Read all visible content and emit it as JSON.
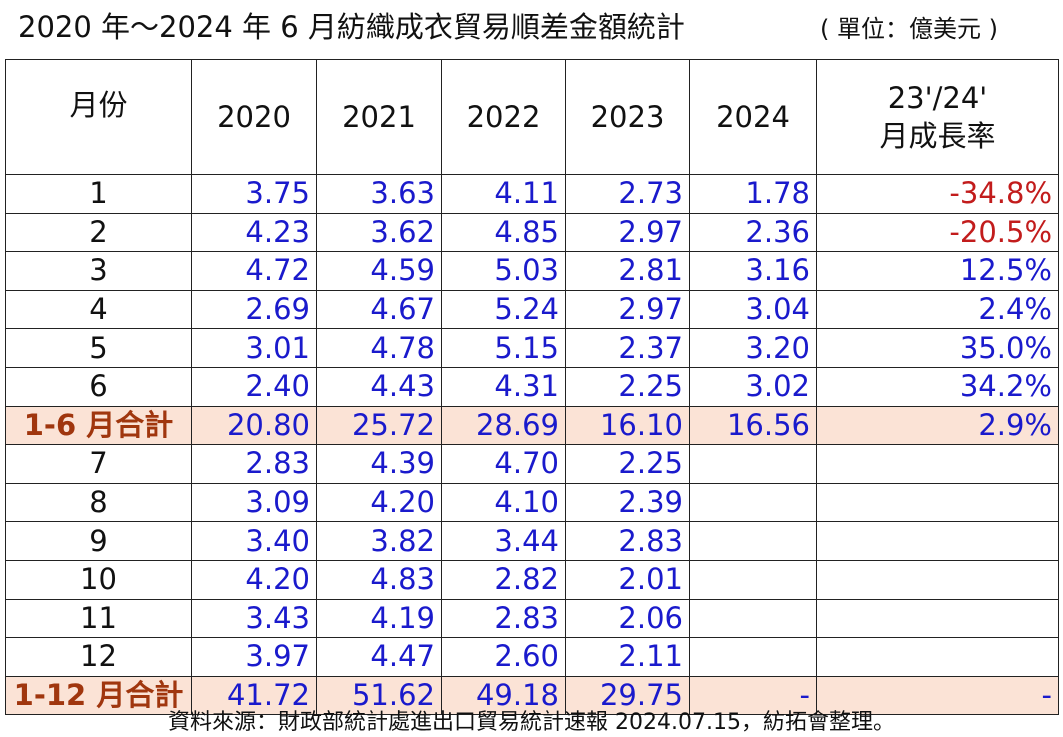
{
  "title": "2020 年～2024 年 6 月紡織成衣貿易順差金額統計",
  "unit": "( 單位：億美元 )",
  "headers": {
    "month": "月份",
    "y2020": "2020",
    "y2021": "2021",
    "y2022": "2022",
    "y2023": "2023",
    "y2024": "2024",
    "growth_line1": "23'/24'",
    "growth_line2": "月成長率"
  },
  "rows": [
    {
      "month": "1",
      "y2020": "3.75",
      "y2021": "3.63",
      "y2022": "4.11",
      "y2023": "2.73",
      "y2024": "1.78",
      "growth": "-34.8%"
    },
    {
      "month": "2",
      "y2020": "4.23",
      "y2021": "3.62",
      "y2022": "4.85",
      "y2023": "2.97",
      "y2024": "2.36",
      "growth": "-20.5%"
    },
    {
      "month": "3",
      "y2020": "4.72",
      "y2021": "4.59",
      "y2022": "5.03",
      "y2023": "2.81",
      "y2024": "3.16",
      "growth": "12.5%"
    },
    {
      "month": "4",
      "y2020": "2.69",
      "y2021": "4.67",
      "y2022": "5.24",
      "y2023": "2.97",
      "y2024": "3.04",
      "growth": "2.4%"
    },
    {
      "month": "5",
      "y2020": "3.01",
      "y2021": "4.78",
      "y2022": "5.15",
      "y2023": "2.37",
      "y2024": "3.20",
      "growth": "35.0%"
    },
    {
      "month": "6",
      "y2020": "2.40",
      "y2021": "4.43",
      "y2022": "4.31",
      "y2023": "2.25",
      "y2024": "3.02",
      "growth": "34.2%"
    },
    {
      "month": "1-6 月合計",
      "y2020": "20.80",
      "y2021": "25.72",
      "y2022": "28.69",
      "y2023": "16.10",
      "y2024": "16.56",
      "growth": "2.9%"
    },
    {
      "month": "7",
      "y2020": "2.83",
      "y2021": "4.39",
      "y2022": "4.70",
      "y2023": "2.25",
      "y2024": "",
      "growth": ""
    },
    {
      "month": "8",
      "y2020": "3.09",
      "y2021": "4.20",
      "y2022": "4.10",
      "y2023": "2.39",
      "y2024": "",
      "growth": ""
    },
    {
      "month": "9",
      "y2020": "3.40",
      "y2021": "3.82",
      "y2022": "3.44",
      "y2023": "2.83",
      "y2024": "",
      "growth": ""
    },
    {
      "month": "10",
      "y2020": "4.20",
      "y2021": "4.83",
      "y2022": "2.82",
      "y2023": "2.01",
      "y2024": "",
      "growth": ""
    },
    {
      "month": "11",
      "y2020": "3.43",
      "y2021": "4.19",
      "y2022": "2.83",
      "y2023": "2.06",
      "y2024": "",
      "growth": ""
    },
    {
      "month": "12",
      "y2020": "3.97",
      "y2021": "4.47",
      "y2022": "2.60",
      "y2023": "2.11",
      "y2024": "",
      "growth": ""
    },
    {
      "month": "1-12 月合計",
      "y2020": "41.72",
      "y2021": "51.62",
      "y2022": "49.18",
      "y2023": "29.75",
      "y2024": "-",
      "growth": "-"
    }
  ],
  "source": "資料來源：財政部統計處進出口貿易統計速報 2024.07.15，紡拓會整理。",
  "colors": {
    "value_text": "#1a1acc",
    "negative_text": "#c21c1c",
    "subtotal_background": "#fbe3d6",
    "subtotal_label": "#a0360e"
  }
}
